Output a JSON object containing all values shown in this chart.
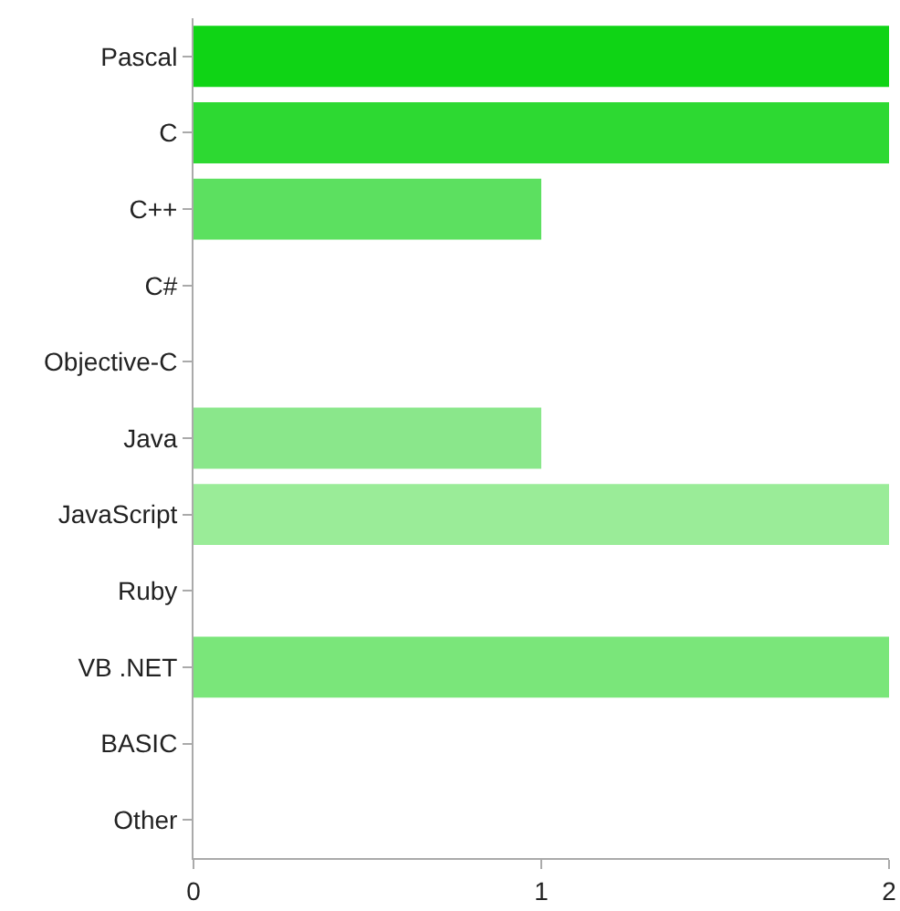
{
  "chart_data": {
    "type": "bar",
    "orientation": "horizontal",
    "categories": [
      "Pascal",
      "C",
      "C++",
      "C#",
      "Objective-C",
      "Java",
      "JavaScript",
      "Ruby",
      "VB .NET",
      "BASIC",
      "Other"
    ],
    "values": [
      2,
      2,
      1,
      0,
      0,
      1,
      2,
      0,
      2,
      0,
      0
    ],
    "colors": [
      "#0fd415",
      "#2dd932",
      "#5ce060",
      null,
      null,
      "#8ae78b",
      "#9aec98",
      null,
      "#7ae67a",
      null,
      null
    ],
    "xlim": [
      0,
      2
    ],
    "xticks": [
      0,
      1,
      2
    ],
    "grid": false
  }
}
